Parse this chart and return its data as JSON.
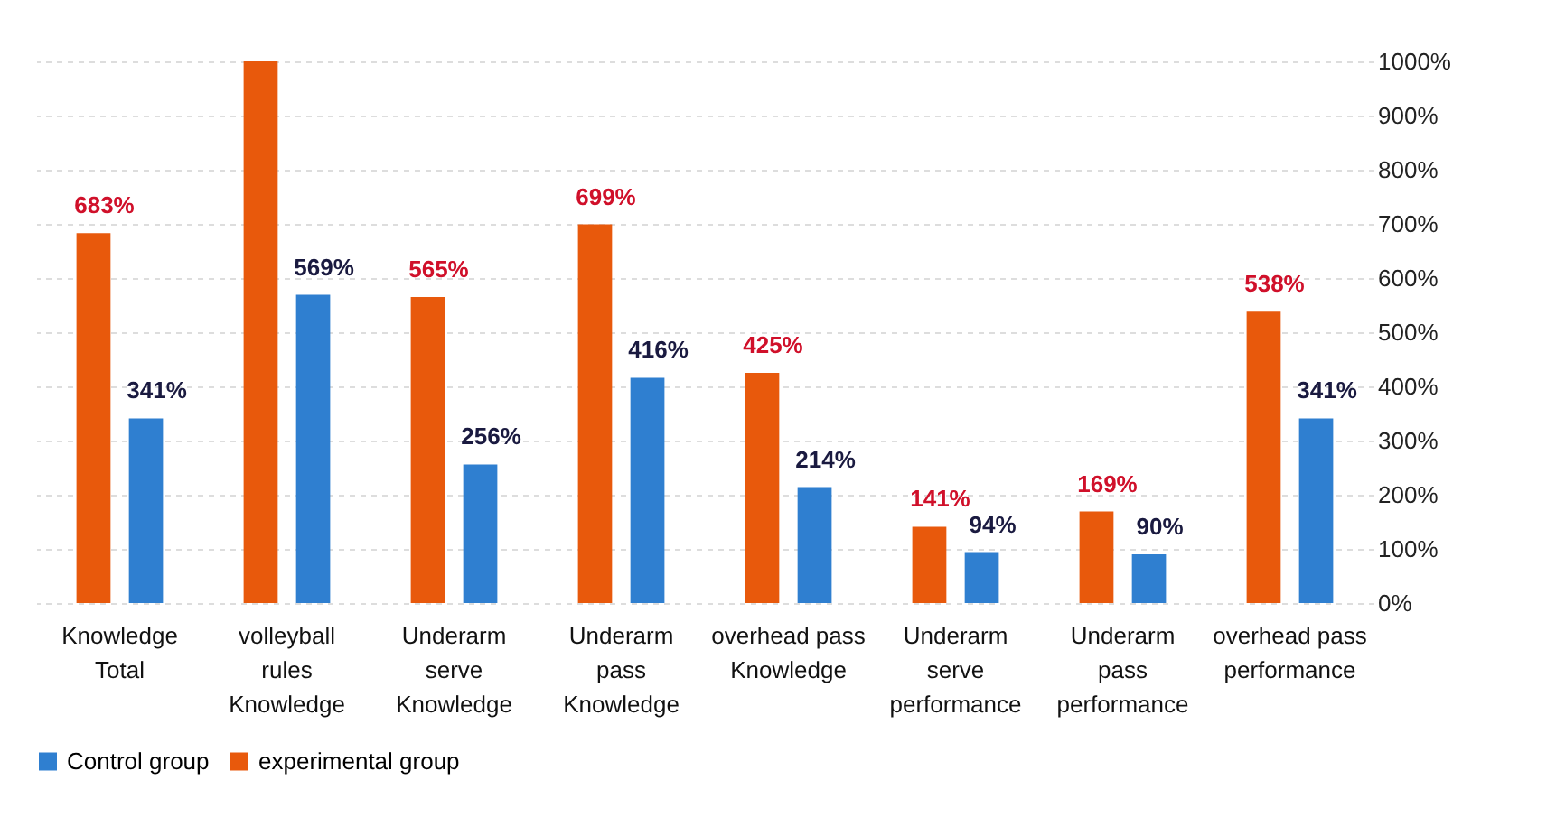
{
  "chart_data": {
    "type": "bar",
    "categories": [
      "Knowledge\nTotal",
      "volleyball\nrules\nKnowledge",
      "Underarm\nserve\nKnowledge",
      "Underarm\npass\nKnowledge",
      "overhead pass\nKnowledge",
      "Underarm\nserve\nperformance",
      "Underarm\npass\nperformance",
      "overhead pass\nperformance"
    ],
    "series": [
      {
        "name": "experimental group",
        "color": "#e8590c",
        "values": [
          683,
          1000,
          565,
          699,
          425,
          141,
          169,
          538
        ],
        "value_labels": [
          "683%",
          null,
          "565%",
          "699%",
          "425%",
          "141%",
          "169%",
          "538%"
        ]
      },
      {
        "name": "Control group",
        "color": "#2f7fd0",
        "values": [
          341,
          569,
          256,
          416,
          214,
          94,
          90,
          341
        ],
        "value_labels": [
          "341%",
          "569%",
          "256%",
          "416%",
          "214%",
          "94%",
          "90%",
          "341%"
        ]
      }
    ],
    "ylim": [
      0,
      1000
    ],
    "yticks": [
      {
        "value": 0,
        "label": "0%"
      },
      {
        "value": 100,
        "label": "100%"
      },
      {
        "value": 200,
        "label": "200%"
      },
      {
        "value": 300,
        "label": "300%"
      },
      {
        "value": 400,
        "label": "400%"
      },
      {
        "value": 500,
        "label": "500%"
      },
      {
        "value": 600,
        "label": "600%"
      },
      {
        "value": 700,
        "label": "700%"
      },
      {
        "value": 800,
        "label": "800%"
      },
      {
        "value": 900,
        "label": "900%"
      },
      {
        "value": 1000,
        "label": "1000%"
      }
    ],
    "grid": true,
    "legend": "bottom"
  }
}
